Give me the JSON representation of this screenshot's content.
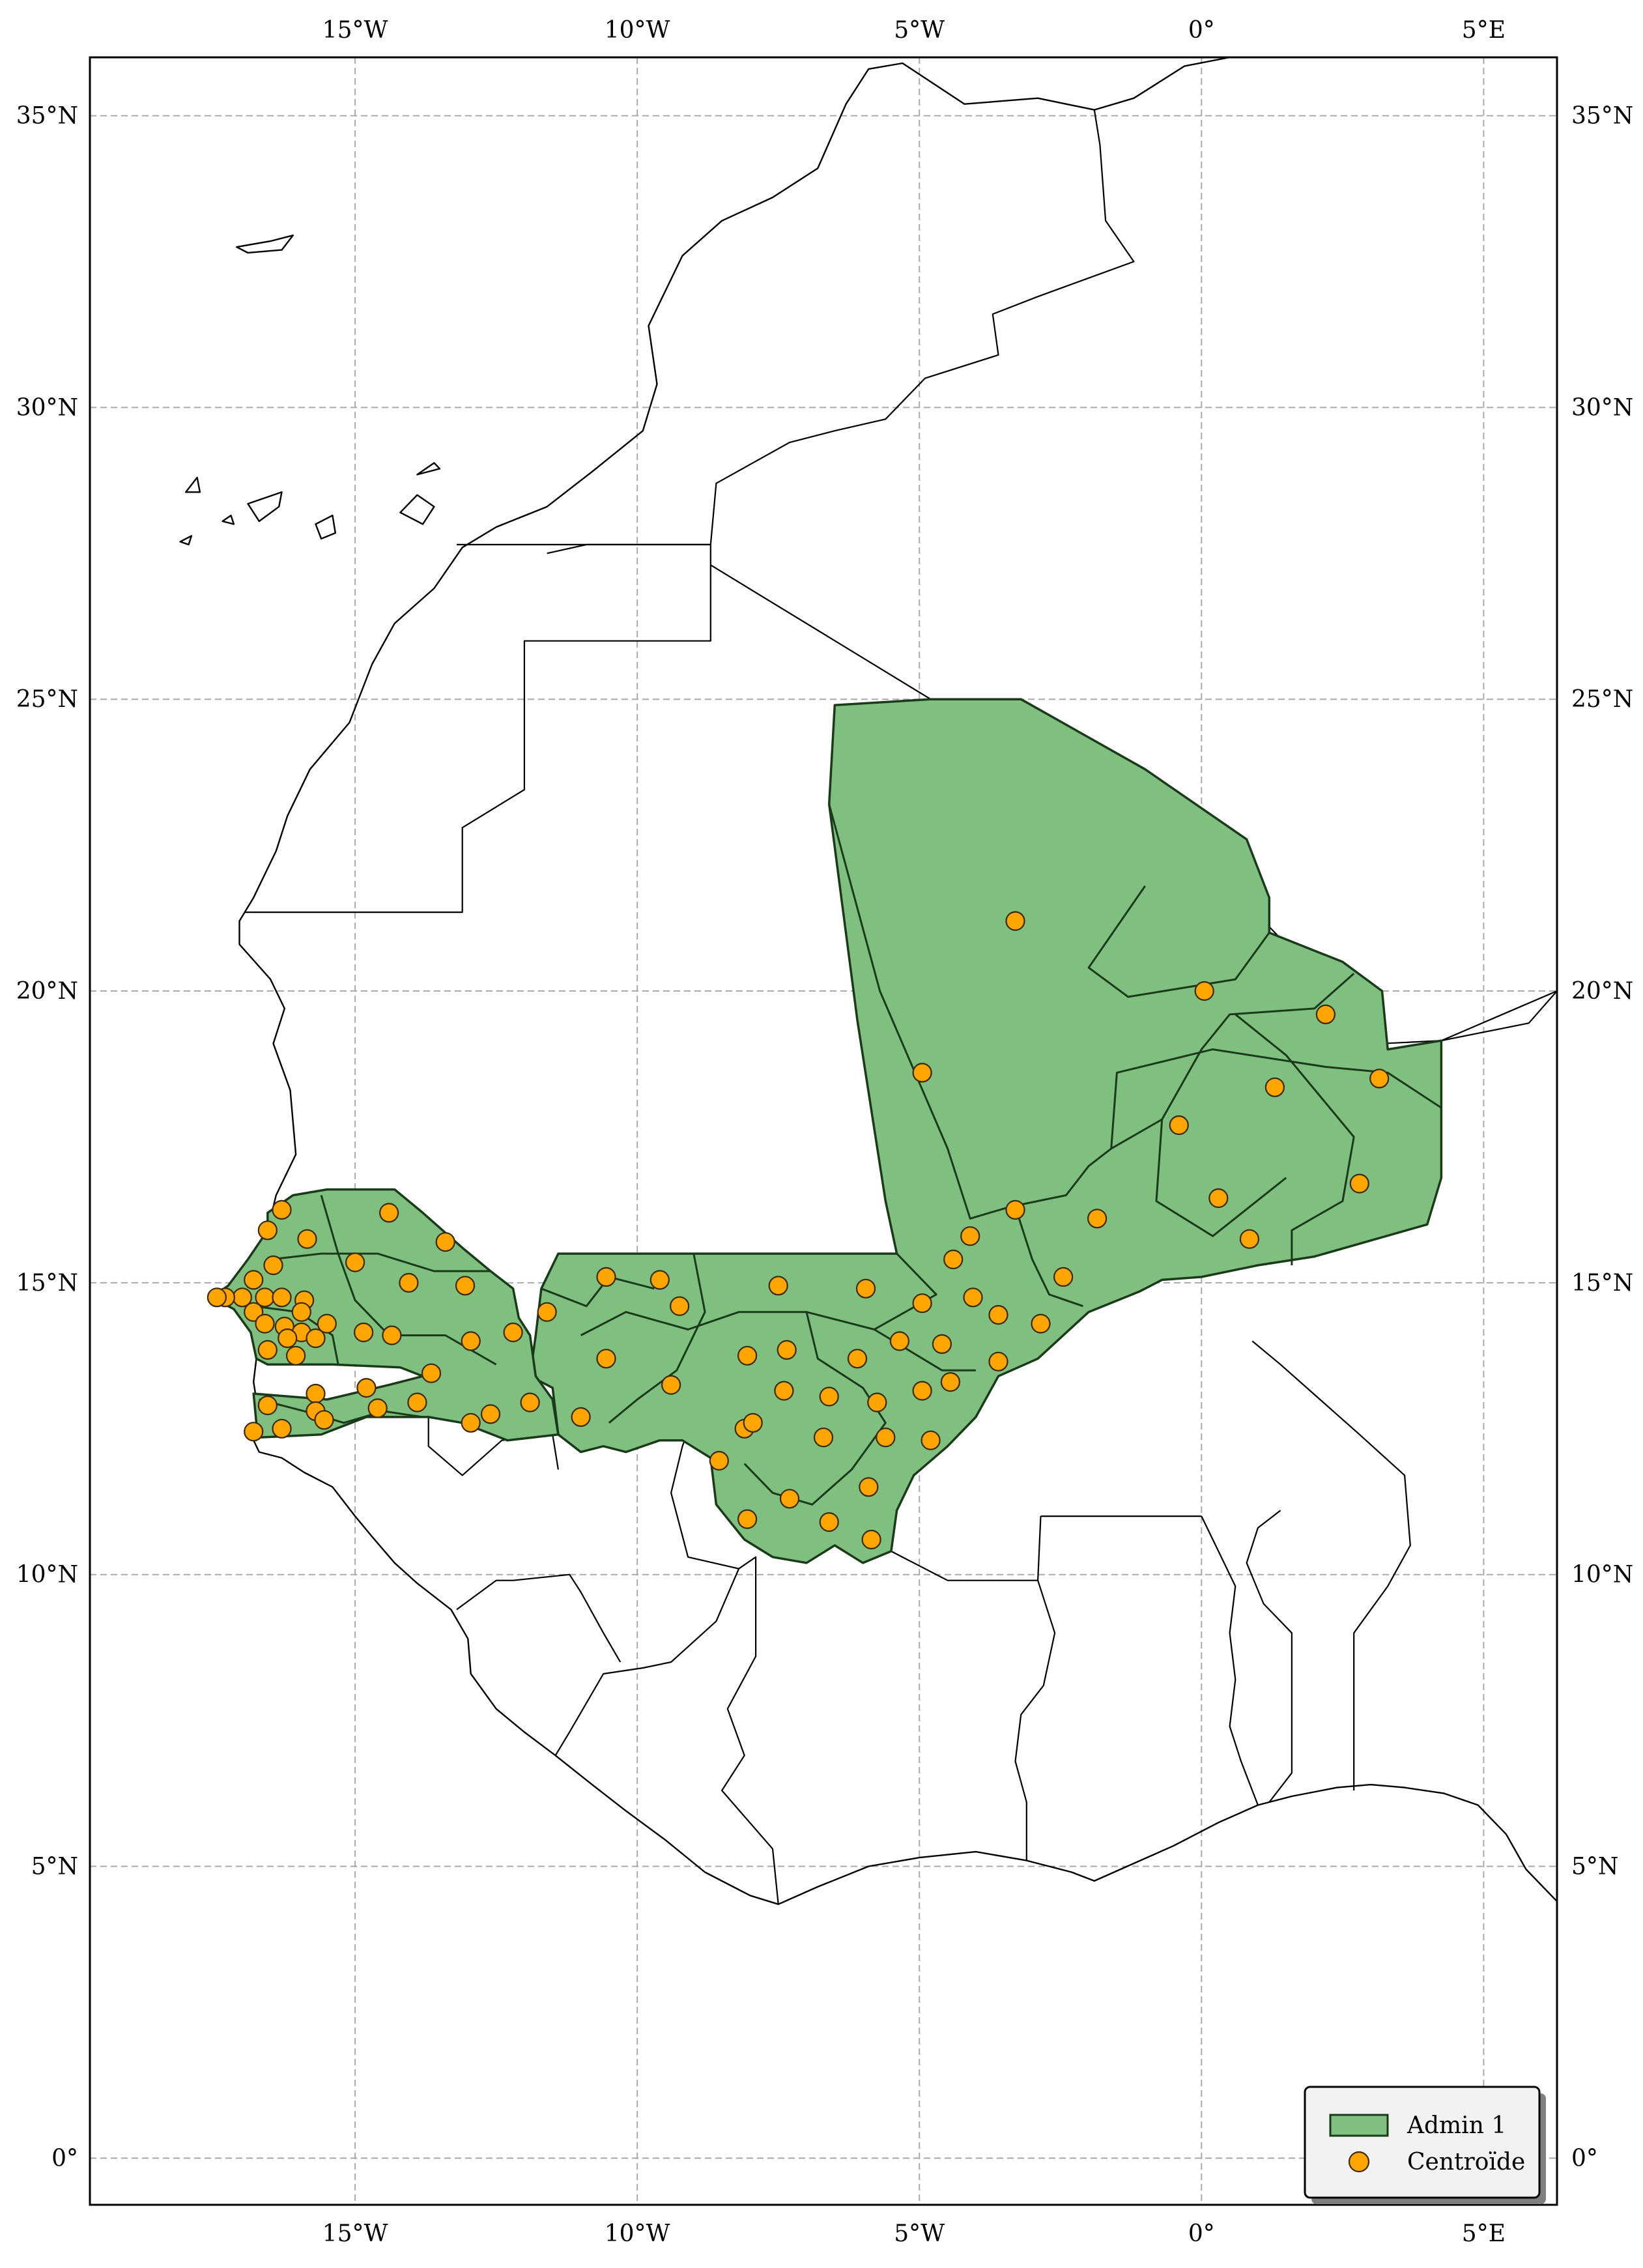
{
  "map": {
    "extent": {
      "lon_min": -19.7,
      "lon_max": 6.3,
      "lat_min": -0.8,
      "lat_max": 36.0
    },
    "grid": true,
    "lon_ticks": [
      {
        "lon": -15,
        "label": "15°W"
      },
      {
        "lon": -10,
        "label": "10°W"
      },
      {
        "lon": -5,
        "label": "5°W"
      },
      {
        "lon": 0,
        "label": "0°"
      },
      {
        "lon": 5,
        "label": "5°E"
      }
    ],
    "lat_ticks": [
      {
        "lat": 35,
        "label": "35°N"
      },
      {
        "lat": 30,
        "label": "30°N"
      },
      {
        "lat": 25,
        "label": "25°N"
      },
      {
        "lat": 20,
        "label": "20°N"
      },
      {
        "lat": 15,
        "label": "15°N"
      },
      {
        "lat": 10,
        "label": "10°N"
      },
      {
        "lat": 5,
        "label": "5°N"
      },
      {
        "lat": 0,
        "label": "0°"
      }
    ],
    "colors": {
      "admin_fill": "#7fbf7f",
      "admin_edge": "#1a3a1a",
      "centroid": "#ffa500"
    },
    "legend": {
      "position": "lower-right",
      "items": [
        {
          "label": "Admin 1",
          "marker": "green-patch-icon"
        },
        {
          "label": "Centroïde",
          "marker": "orange-circle-icon"
        }
      ]
    },
    "centroids": [
      [
        -3.3,
        21.2
      ],
      [
        0.05,
        20.0
      ],
      [
        2.2,
        19.6
      ],
      [
        -4.95,
        18.6
      ],
      [
        3.15,
        18.5
      ],
      [
        1.3,
        18.35
      ],
      [
        -0.4,
        17.7
      ],
      [
        2.8,
        16.7
      ],
      [
        0.3,
        16.45
      ],
      [
        -1.85,
        16.1
      ],
      [
        -3.3,
        16.25
      ],
      [
        0.85,
        15.75
      ],
      [
        -4.1,
        15.8
      ],
      [
        -4.4,
        15.4
      ],
      [
        -2.45,
        15.1
      ],
      [
        -5.95,
        14.9
      ],
      [
        -7.5,
        14.95
      ],
      [
        -4.95,
        14.65
      ],
      [
        -4.05,
        14.75
      ],
      [
        -3.6,
        14.45
      ],
      [
        -2.85,
        14.3
      ],
      [
        -9.6,
        15.05
      ],
      [
        -10.55,
        15.1
      ],
      [
        -9.25,
        14.6
      ],
      [
        -11.6,
        14.5
      ],
      [
        -5.35,
        14.0
      ],
      [
        -4.6,
        13.95
      ],
      [
        -6.1,
        13.7
      ],
      [
        -7.35,
        13.85
      ],
      [
        -8.05,
        13.75
      ],
      [
        -10.55,
        13.7
      ],
      [
        -3.6,
        13.65
      ],
      [
        -9.4,
        13.25
      ],
      [
        -4.45,
        13.3
      ],
      [
        -4.95,
        13.15
      ],
      [
        -7.4,
        13.15
      ],
      [
        -6.6,
        13.05
      ],
      [
        -5.75,
        12.95
      ],
      [
        -11.0,
        12.7
      ],
      [
        -8.1,
        12.5
      ],
      [
        -7.95,
        12.6
      ],
      [
        -6.7,
        12.35
      ],
      [
        -5.6,
        12.35
      ],
      [
        -4.8,
        12.3
      ],
      [
        -8.55,
        11.95
      ],
      [
        -5.9,
        11.5
      ],
      [
        -7.3,
        11.3
      ],
      [
        -8.05,
        10.95
      ],
      [
        -6.6,
        10.9
      ],
      [
        -5.85,
        10.6
      ],
      [
        -16.3,
        16.25
      ],
      [
        -14.4,
        16.2
      ],
      [
        -13.4,
        15.7
      ],
      [
        -16.55,
        15.9
      ],
      [
        -15.85,
        15.75
      ],
      [
        -16.45,
        15.3
      ],
      [
        -15.0,
        15.35
      ],
      [
        -16.8,
        15.05
      ],
      [
        -14.05,
        15.0
      ],
      [
        -13.05,
        14.95
      ],
      [
        -17.0,
        14.75
      ],
      [
        -17.3,
        14.75
      ],
      [
        -17.45,
        14.75
      ],
      [
        -16.6,
        14.75
      ],
      [
        -16.3,
        14.75
      ],
      [
        -15.9,
        14.7
      ],
      [
        -16.8,
        14.5
      ],
      [
        -15.95,
        14.5
      ],
      [
        -16.6,
        14.3
      ],
      [
        -16.25,
        14.25
      ],
      [
        -15.5,
        14.3
      ],
      [
        -15.95,
        14.15
      ],
      [
        -16.2,
        14.05
      ],
      [
        -15.7,
        14.05
      ],
      [
        -14.85,
        14.15
      ],
      [
        -14.35,
        14.1
      ],
      [
        -12.95,
        14.0
      ],
      [
        -12.2,
        14.15
      ],
      [
        -16.55,
        13.85
      ],
      [
        -16.05,
        13.75
      ],
      [
        -13.65,
        13.45
      ],
      [
        -15.7,
        13.1
      ],
      [
        -14.8,
        13.2
      ],
      [
        -16.55,
        12.9
      ],
      [
        -15.7,
        12.8
      ],
      [
        -14.6,
        12.85
      ],
      [
        -13.9,
        12.95
      ],
      [
        -11.9,
        12.95
      ],
      [
        -12.6,
        12.75
      ],
      [
        -12.95,
        12.6
      ],
      [
        -16.8,
        12.45
      ],
      [
        -16.3,
        12.5
      ],
      [
        -15.55,
        12.65
      ]
    ]
  }
}
